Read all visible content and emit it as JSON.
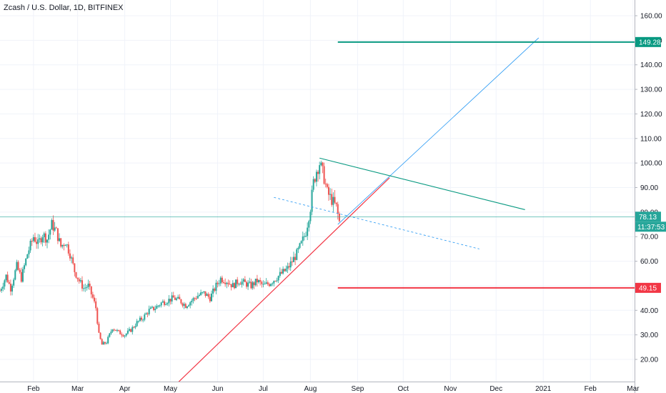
{
  "chart_data": {
    "type": "candlestick",
    "title": "Zcash / U.S. Dollar, 1D, BITFINEX",
    "y_ticks": [
      "20.00",
      "30.00",
      "40.00",
      "50.00",
      "60.00",
      "70.00",
      "80.00",
      "90.00",
      "100.00",
      "110.00",
      "120.00",
      "130.00",
      "140.00",
      "150.00",
      "160.00"
    ],
    "ylim": [
      10,
      164
    ],
    "x_ticks": [
      {
        "label": "Feb",
        "date": "2020-02-01"
      },
      {
        "label": "Mar",
        "date": "2020-03-01"
      },
      {
        "label": "Apr",
        "date": "2020-04-01"
      },
      {
        "label": "May",
        "date": "2020-05-01"
      },
      {
        "label": "Jun",
        "date": "2020-06-01"
      },
      {
        "label": "Jul",
        "date": "2020-07-01"
      },
      {
        "label": "Aug",
        "date": "2020-08-01"
      },
      {
        "label": "Sep",
        "date": "2020-09-01"
      },
      {
        "label": "Oct",
        "date": "2020-10-01"
      },
      {
        "label": "Nov",
        "date": "2020-11-01"
      },
      {
        "label": "Dec",
        "date": "2020-12-01"
      },
      {
        "label": "2021",
        "date": "2021-01-01"
      },
      {
        "label": "Feb",
        "date": "2021-02-01"
      },
      {
        "label": "Mar",
        "date": "2021-03-01"
      }
    ],
    "xlim": [
      "2020-01-10",
      "2021-03-02"
    ],
    "up_color": "#26a69a",
    "down_color": "#ef5350",
    "price_path": [
      [
        "2020-01-10",
        48
      ],
      [
        "2020-01-14",
        54
      ],
      [
        "2020-01-17",
        49
      ],
      [
        "2020-01-21",
        58
      ],
      [
        "2020-01-24",
        53
      ],
      [
        "2020-01-28",
        63
      ],
      [
        "2020-02-01",
        70
      ],
      [
        "2020-02-04",
        67
      ],
      [
        "2020-02-07",
        71
      ],
      [
        "2020-02-10",
        69
      ],
      [
        "2020-02-13",
        75
      ],
      [
        "2020-02-16",
        72
      ],
      [
        "2020-02-19",
        66
      ],
      [
        "2020-02-22",
        68
      ],
      [
        "2020-02-25",
        63
      ],
      [
        "2020-02-28",
        56
      ],
      [
        "2020-03-02",
        52
      ],
      [
        "2020-03-05",
        49
      ],
      [
        "2020-03-08",
        50
      ],
      [
        "2020-03-11",
        45
      ],
      [
        "2020-03-13",
        41
      ],
      [
        "2020-03-15",
        30
      ],
      [
        "2020-03-17",
        26
      ],
      [
        "2020-03-20",
        27
      ],
      [
        "2020-03-24",
        33
      ],
      [
        "2020-03-28",
        31
      ],
      [
        "2020-04-01",
        30
      ],
      [
        "2020-04-05",
        32
      ],
      [
        "2020-04-09",
        35
      ],
      [
        "2020-04-13",
        37
      ],
      [
        "2020-04-17",
        40
      ],
      [
        "2020-04-21",
        41
      ],
      [
        "2020-04-25",
        43
      ],
      [
        "2020-04-29",
        44
      ],
      [
        "2020-05-03",
        45
      ],
      [
        "2020-05-07",
        44
      ],
      [
        "2020-05-11",
        42
      ],
      [
        "2020-05-15",
        44
      ],
      [
        "2020-05-19",
        46
      ],
      [
        "2020-05-23",
        47
      ],
      [
        "2020-05-27",
        45
      ],
      [
        "2020-05-31",
        50
      ],
      [
        "2020-06-03",
        53
      ],
      [
        "2020-06-07",
        52
      ],
      [
        "2020-06-11",
        50
      ],
      [
        "2020-06-15",
        52
      ],
      [
        "2020-06-19",
        51
      ],
      [
        "2020-06-23",
        50
      ],
      [
        "2020-06-27",
        52
      ],
      [
        "2020-07-01",
        50
      ],
      [
        "2020-07-05",
        51
      ],
      [
        "2020-07-09",
        53
      ],
      [
        "2020-07-13",
        55
      ],
      [
        "2020-07-17",
        57
      ],
      [
        "2020-07-20",
        60
      ],
      [
        "2020-07-23",
        63
      ],
      [
        "2020-07-26",
        67
      ],
      [
        "2020-07-29",
        72
      ],
      [
        "2020-08-01",
        82
      ],
      [
        "2020-08-03",
        92
      ],
      [
        "2020-08-05",
        97
      ],
      [
        "2020-08-07",
        100
      ],
      [
        "2020-08-10",
        94
      ],
      [
        "2020-08-12",
        88
      ],
      [
        "2020-08-14",
        86
      ],
      [
        "2020-08-16",
        84
      ],
      [
        "2020-08-18",
        82
      ],
      [
        "2020-08-20",
        76
      ]
    ],
    "candle_range_pct": 0.035,
    "lines": [
      {
        "name": "support-line",
        "color": "#f23645",
        "width": 1.2,
        "points": [
          [
            "2020-05-05",
            10
          ],
          [
            "2020-09-22",
            94
          ]
        ]
      },
      {
        "name": "upper-channel-line",
        "color": "#2196f3",
        "width": 0.8,
        "points": [
          [
            "2020-08-19",
            75
          ],
          [
            "2020-12-29",
            151
          ]
        ]
      },
      {
        "name": "descending-resistance-line",
        "color": "#089981",
        "width": 1.1,
        "points": [
          [
            "2020-08-07",
            102
          ],
          [
            "2020-12-20",
            81
          ]
        ]
      },
      {
        "name": "descending-dashed-line",
        "color": "#2196f3",
        "width": 0.8,
        "dash": "3,3",
        "points": [
          [
            "2020-07-08",
            86
          ],
          [
            "2020-11-20",
            65
          ]
        ]
      },
      {
        "name": "target-line-upper",
        "color": "#089981",
        "width": 2,
        "points": [
          [
            "2020-08-19",
            149.28
          ],
          [
            "2021-03-02",
            149.28
          ]
        ]
      },
      {
        "name": "target-line-lower",
        "color": "#f23645",
        "width": 2,
        "points": [
          [
            "2020-08-19",
            49.15
          ],
          [
            "2021-03-02",
            49.15
          ]
        ]
      },
      {
        "name": "current-price-line",
        "color": "#26a69a",
        "width": 0.6,
        "points": [
          [
            "2020-01-10",
            78.13
          ],
          [
            "2021-03-02",
            78.13
          ]
        ]
      }
    ],
    "price_labels": [
      {
        "name": "target-upper-price-label",
        "value": 149.28,
        "text": "149.28",
        "color": "#089981"
      },
      {
        "name": "current-price-label",
        "value": 78.13,
        "text": "78.13",
        "color": "#26a69a"
      },
      {
        "name": "lower-target-price-label",
        "value": 49.15,
        "text": "49.15",
        "color": "#f23645"
      }
    ],
    "countdown_label": {
      "text": "11:37:53",
      "color": "#26a69a"
    }
  }
}
